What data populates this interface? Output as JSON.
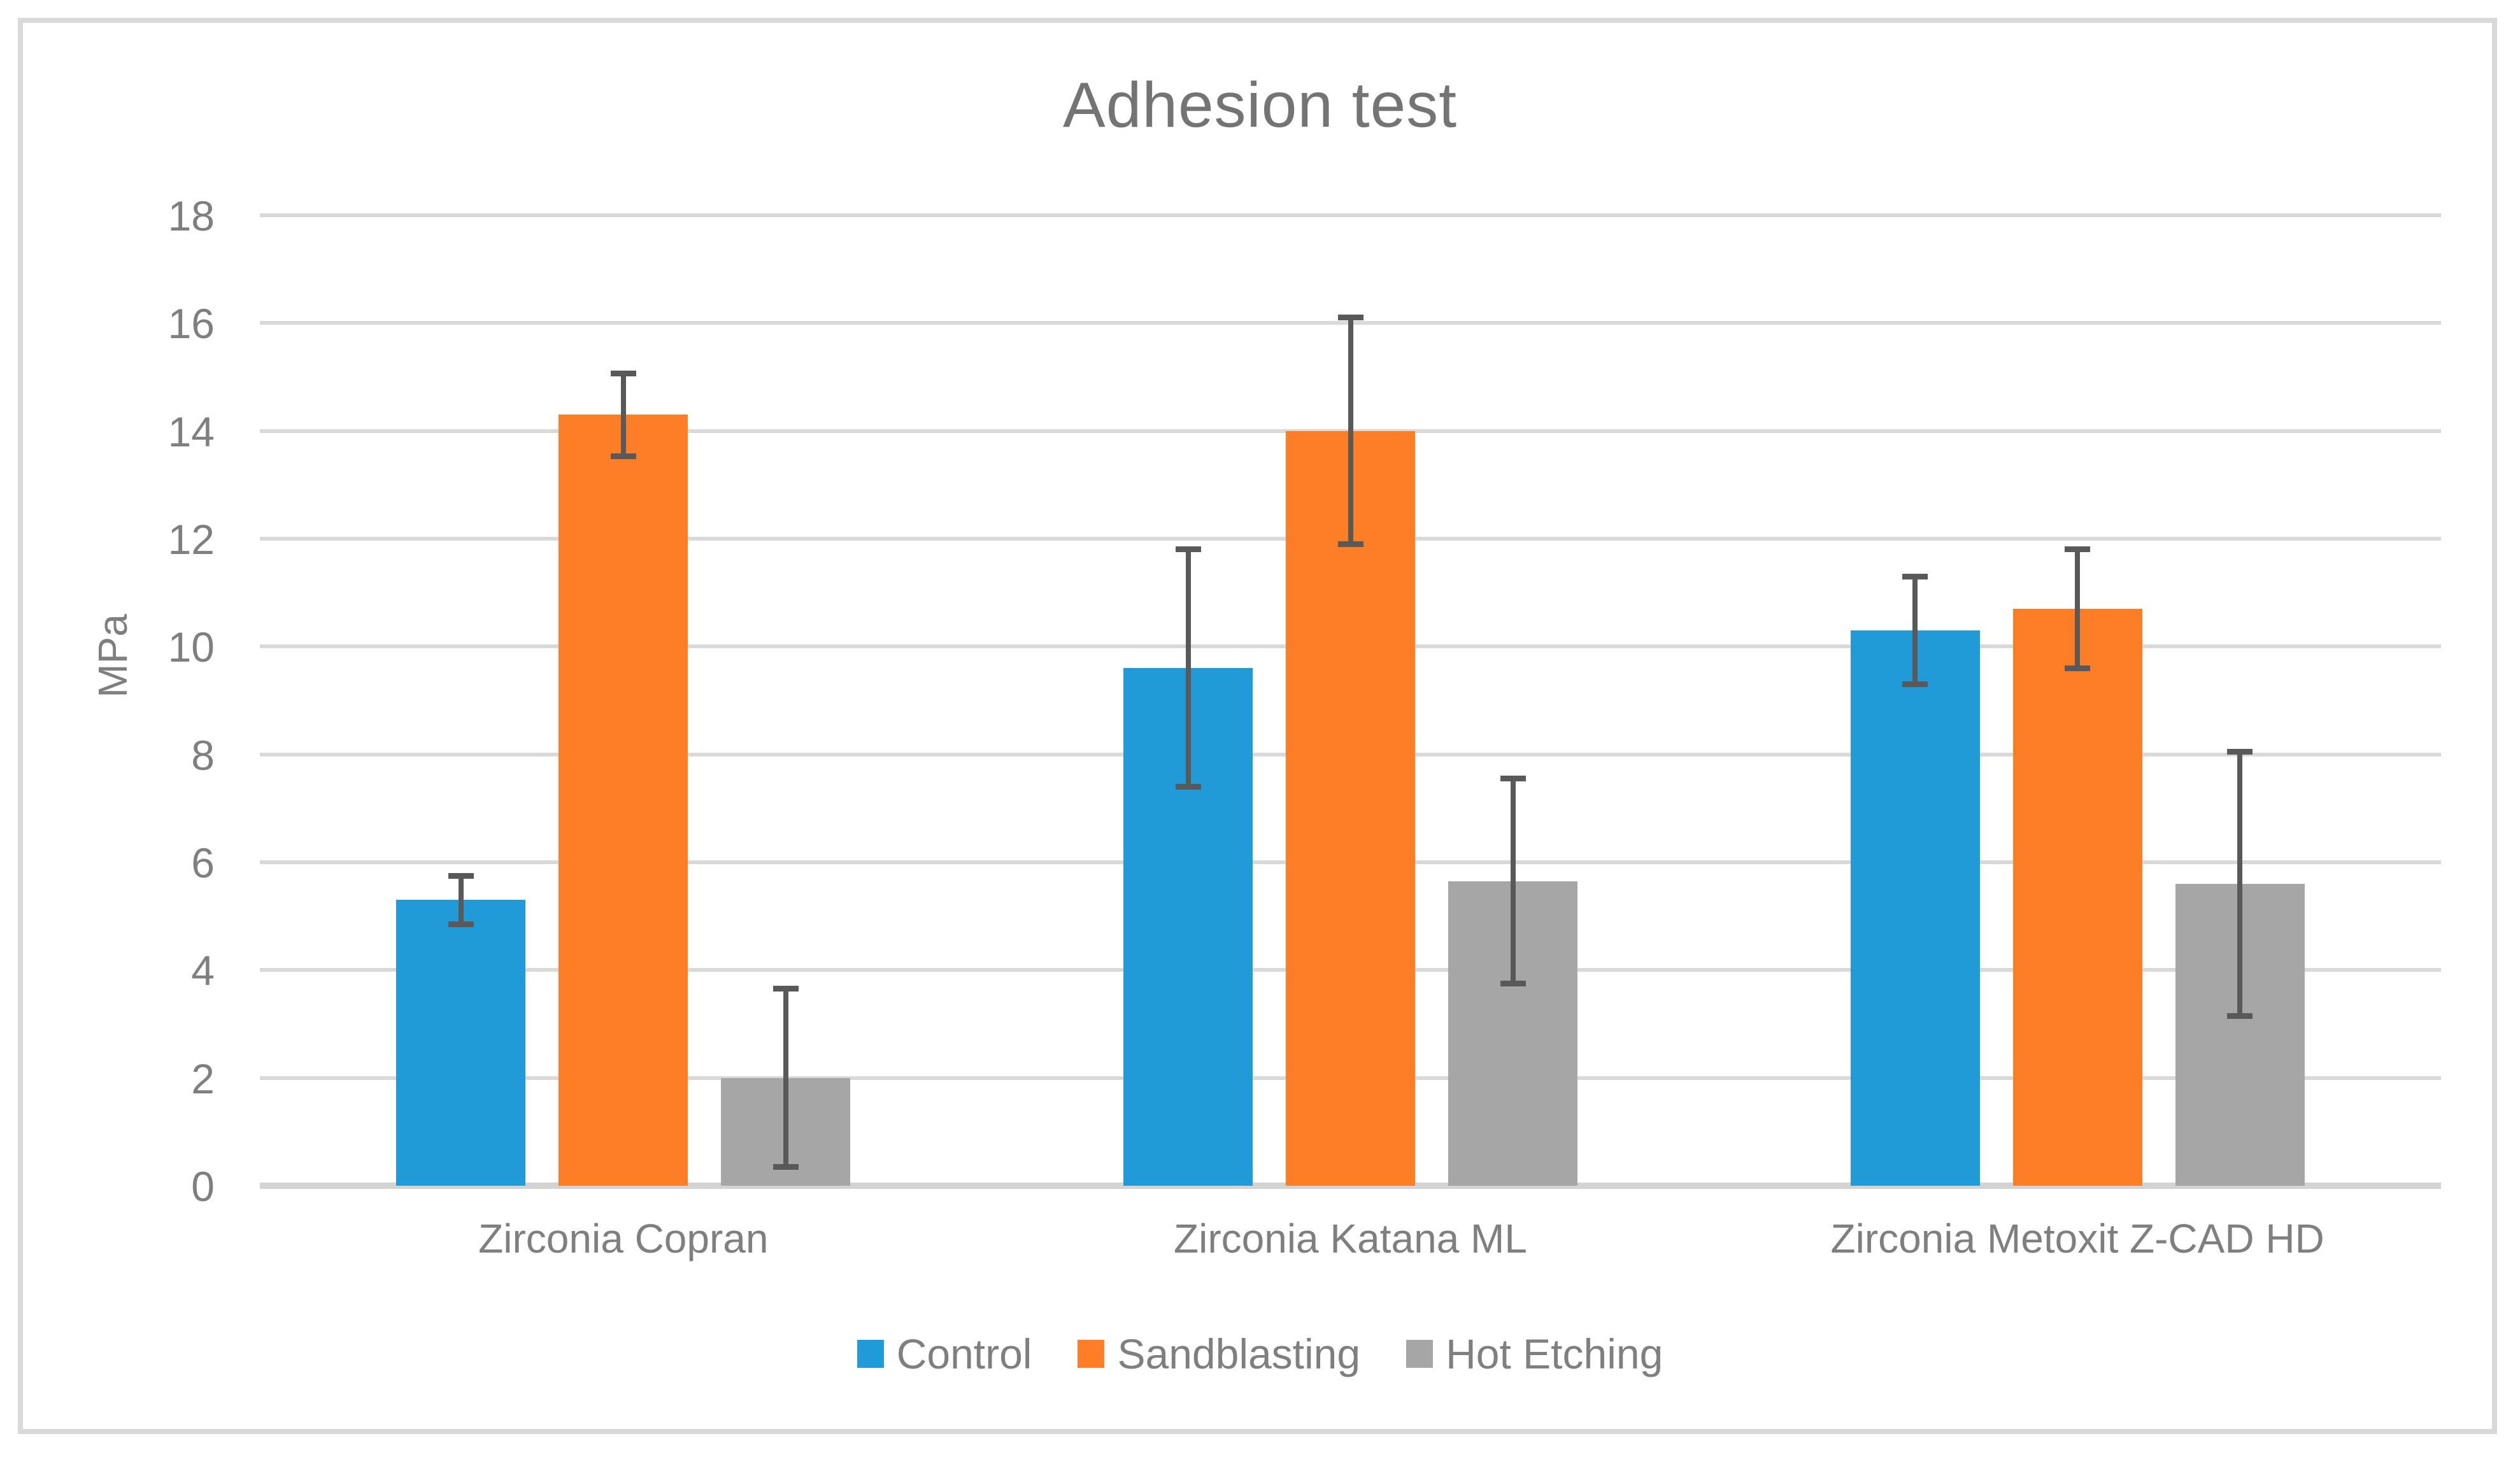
{
  "chart_data": {
    "type": "bar",
    "title": "Adhesion test",
    "xlabel": "",
    "ylabel": "MPa",
    "ylim": [
      0,
      18
    ],
    "ytick_step": 2,
    "yticks": [
      0,
      2,
      4,
      6,
      8,
      10,
      12,
      14,
      16,
      18
    ],
    "grid": true,
    "legend_position": "bottom",
    "categories": [
      "Zirconia Copran",
      "Zirconia Katana ML",
      "Zirconia Metoxit Z-CAD HD"
    ],
    "series": [
      {
        "name": "Control",
        "color": "#209BD8",
        "values": [
          5.3,
          9.6,
          10.3
        ],
        "errors": [
          0.45,
          2.2,
          1.0
        ]
      },
      {
        "name": "Sandblasting",
        "color": "#FD7E26",
        "values": [
          14.3,
          14.0,
          10.7
        ],
        "errors": [
          0.77,
          2.1,
          1.1
        ]
      },
      {
        "name": "Hot Etching",
        "color": "#A6A6A6",
        "values": [
          2.0,
          5.65,
          5.6
        ],
        "errors": [
          1.65,
          1.9,
          2.45
        ]
      }
    ],
    "colors": {
      "gridline": "#D9D9D9",
      "axis_line": "#D3D3D3",
      "error_bar": "#595959",
      "tick_text": "#7F7F7F",
      "title_text": "#747474",
      "frame_border": "#D9D9D9"
    }
  }
}
